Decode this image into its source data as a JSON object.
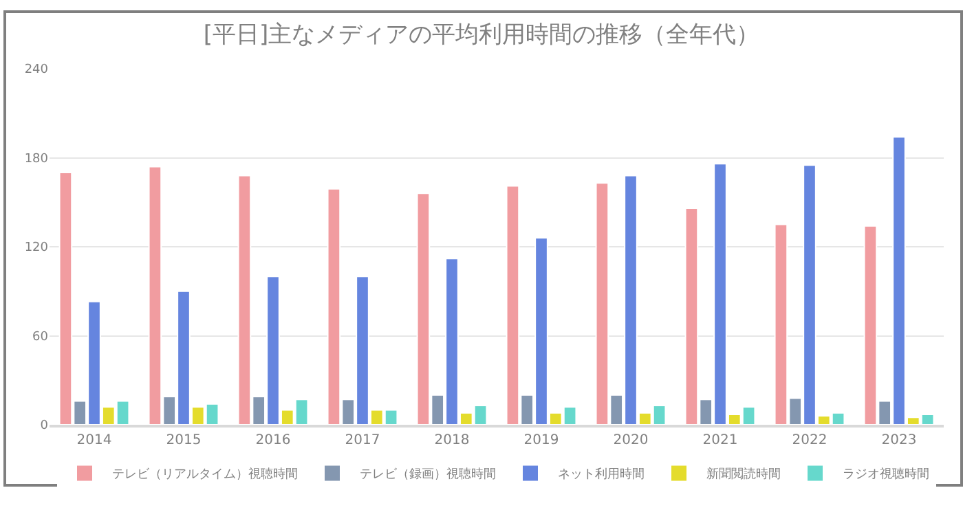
{
  "chart_data": {
    "type": "bar",
    "title": "[平日]主なメディアの平均利用時間の推移（全年代）",
    "categories": [
      "2014",
      "2015",
      "2016",
      "2017",
      "2018",
      "2019",
      "2020",
      "2021",
      "2022",
      "2023"
    ],
    "series": [
      {
        "name": "テレビ（リアルタイム）視聴時間",
        "color": "#f19ca0",
        "values": [
          170,
          174,
          168,
          159,
          156,
          161,
          163,
          146,
          135,
          134
        ]
      },
      {
        "name": "テレビ（録画）視聴時間",
        "color": "#8497b0",
        "values": [
          16,
          19,
          19,
          17,
          20,
          20,
          20,
          17,
          18,
          16
        ]
      },
      {
        "name": "ネット利用時間",
        "color": "#6585df",
        "values": [
          83,
          90,
          100,
          100,
          112,
          126,
          168,
          176,
          175,
          194
        ]
      },
      {
        "name": "新聞閲読時間",
        "color": "#e4dc2c",
        "values": [
          12,
          12,
          10,
          10,
          8,
          8,
          8,
          7,
          6,
          5
        ]
      },
      {
        "name": "ラジオ視聴時間",
        "color": "#66d8cc",
        "values": [
          16,
          14,
          17,
          10,
          13,
          12,
          13,
          12,
          8,
          7
        ]
      }
    ],
    "ylim": [
      0,
      240
    ],
    "yticks": [
      0,
      60,
      120,
      180,
      240
    ],
    "grid": "y",
    "legend": "bottom"
  }
}
